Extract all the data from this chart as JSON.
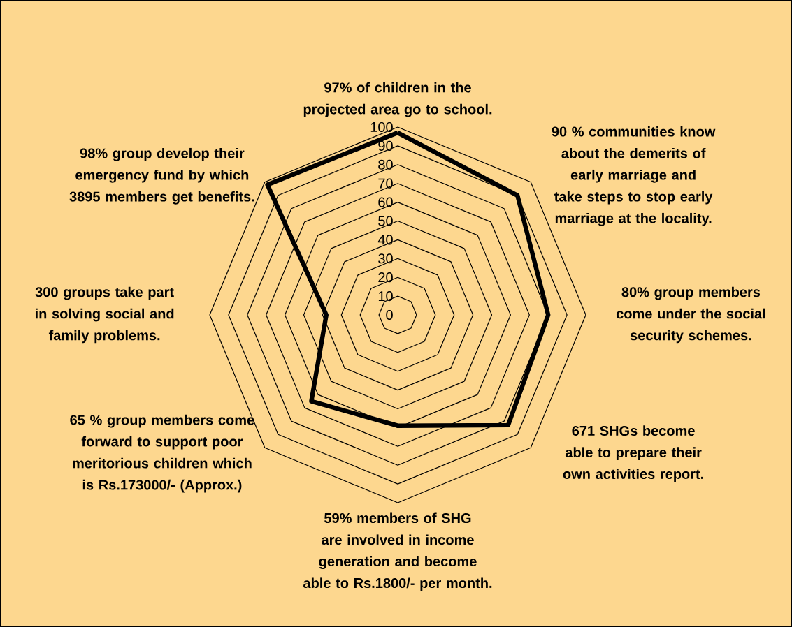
{
  "chart_data": {
    "type": "radar",
    "categories": [
      "97% of children in the projected area go to school.",
      "90 % communities know about the demerits of early marriage and take steps to stop early marriage at the locality.",
      "80% group members come under the social security schemes.",
      "671 SHGs become able to prepare their own activities report.",
      "59% members of SHG are involved in income generation and become able to Rs.1800/- per month.",
      "65 % group members come forward to support poor meritorious children which is Rs.173000/- (Approx.)",
      "300 groups take part in solving social and family problems.",
      "98% group develop their emergency fund by which 3895 members get benefits."
    ],
    "series": [
      {
        "color": "#000000",
        "values": [
          97,
          90,
          80,
          83,
          59,
          65,
          38,
          98
        ]
      }
    ],
    "ylim": [
      0,
      100
    ],
    "yticks": [
      0,
      10,
      20,
      30,
      40,
      50,
      60,
      70,
      80,
      90,
      100
    ],
    "grid": true
  }
}
